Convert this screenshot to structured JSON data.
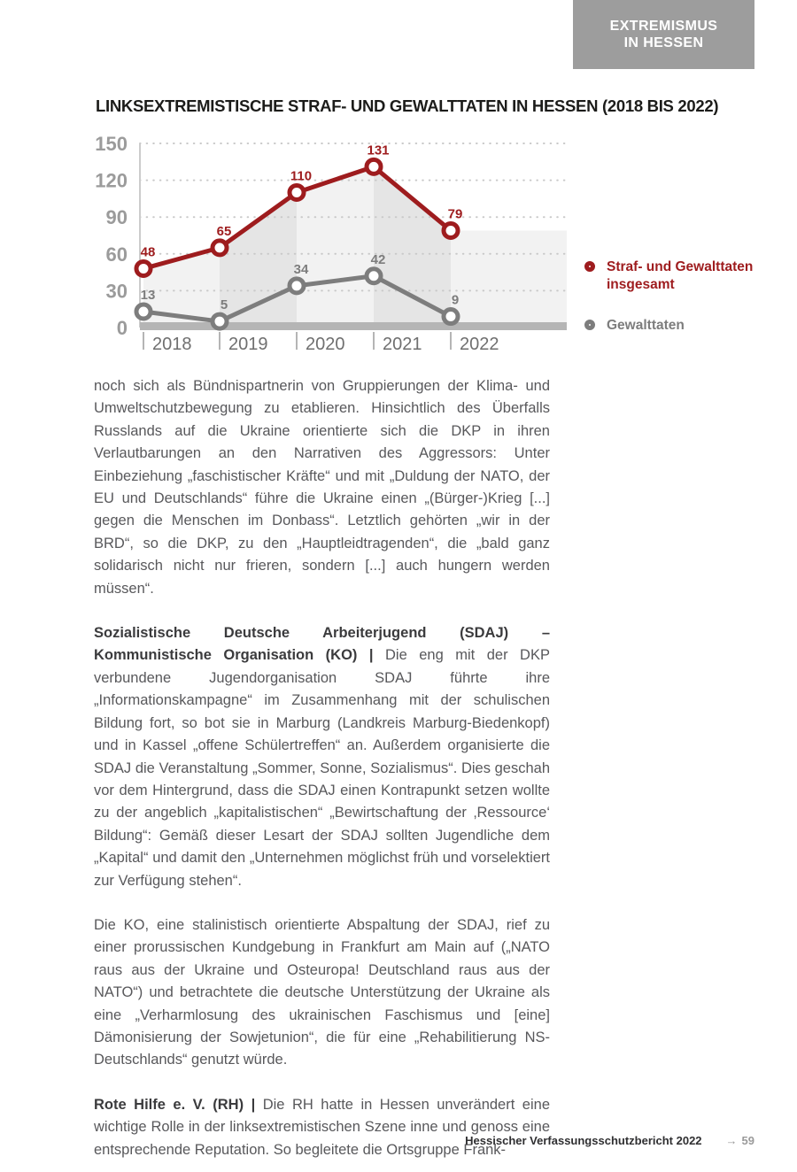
{
  "badge": {
    "line1": "EXTREMISMUS",
    "line2": "IN HESSEN"
  },
  "chart_data": {
    "type": "line",
    "title": "LINKSEXTREMISTISCHE STRAF- UND GEWALTTATEN IN HESSEN (2018 BIS 2022)",
    "categories": [
      "2018",
      "2019",
      "2020",
      "2021",
      "2022"
    ],
    "series": [
      {
        "name": "Straf- und Gewalttaten insgesamt",
        "values": [
          48,
          65,
          110,
          131,
          79
        ],
        "color": "#9e1c1e"
      },
      {
        "name": "Gewalttaten",
        "values": [
          13,
          5,
          34,
          42,
          9
        ],
        "color": "#7d7d7d"
      }
    ],
    "ylim": [
      0,
      150
    ],
    "yticks": [
      0,
      30,
      60,
      90,
      120,
      150
    ],
    "grid": "dotted-horizontal",
    "legend_position": "right",
    "band_colors": [
      "#f2f2f2",
      "#e5e5e5"
    ],
    "grid_color": "#c9c9c9",
    "axis_line_color": "#cccccc",
    "baseline_bar_color": "#b5b5b5",
    "ytick_label_color": "#9b9b9b",
    "xtick_label_color": "#6f6f6f"
  },
  "paragraphs": [
    {
      "lead": "",
      "text": "noch sich als Bündnispartnerin von Gruppierungen der Klima- und Umweltschutzbewegung zu etablieren. Hinsichtlich des Überfalls Russlands auf die Ukraine orientierte sich die DKP in ihren Verlautbarungen an den Narrativen des Aggressors: Unter Einbeziehung „faschistischer Kräfte“ und mit „Duldung der NATO, der EU und Deutschlands“ führe die Ukraine einen „(Bürger-)Krieg [...] gegen die Menschen im Donbass“. Letztlich gehörten „wir in der BRD“, so die DKP, zu den „Hauptleidtragenden“, die „bald ganz solidarisch nicht nur frieren, sondern [...] auch hungern werden müssen“."
    },
    {
      "lead": "Sozialistische Deutsche Arbeiterjugend (SDAJ) – Kommunistische Organisation (KO) | ",
      "text": "Die eng mit der DKP verbundene Jugendorganisation SDAJ führte ihre „Informationskampagne“ im Zusammenhang mit der schulischen Bildung fort, so bot sie in Marburg (Landkreis Marburg-Biedenkopf) und in Kassel „offene Schülertreffen“ an. Außerdem organisierte die SDAJ die Veranstaltung „Sommer, Sonne, Sozialismus“. Dies geschah vor dem Hintergrund, dass die SDAJ einen Kontrapunkt setzen wollte zu der angeblich „kapitalistischen“ „Bewirtschaftung der ‚Ressource‘ Bildung“: Gemäß dieser Lesart der SDAJ sollten Jugendliche dem „Kapital“ und damit den „Unternehmen möglichst früh und vorselektiert zur Verfügung stehen“."
    },
    {
      "lead": "",
      "text": "Die KO, eine stalinistisch orientierte Abspaltung der SDAJ, rief zu einer prorussischen Kundgebung in Frankfurt am Main auf („NATO raus aus der Ukraine und Osteuropa! Deutschland raus aus der NATO“) und betrachtete die deutsche Unterstützung der Ukraine als eine „Verharmlosung des ukrainischen Faschismus und [eine] Dämonisierung der Sowjetunion“, die für eine „Rehabilitierung NS-Deutschlands“ genutzt würde."
    },
    {
      "lead": "Rote Hilfe e. V. (RH) | ",
      "text": "Die RH hatte in Hessen unverändert eine wichtige Rolle in der linksextremistischen Szene inne und genoss eine entsprechende Reputation. So begleitete die Ortsgruppe Frank-"
    }
  ],
  "footer": {
    "source": "Hessischer Verfassungsschutzbericht 2022",
    "arrow": "→",
    "page": "59"
  }
}
